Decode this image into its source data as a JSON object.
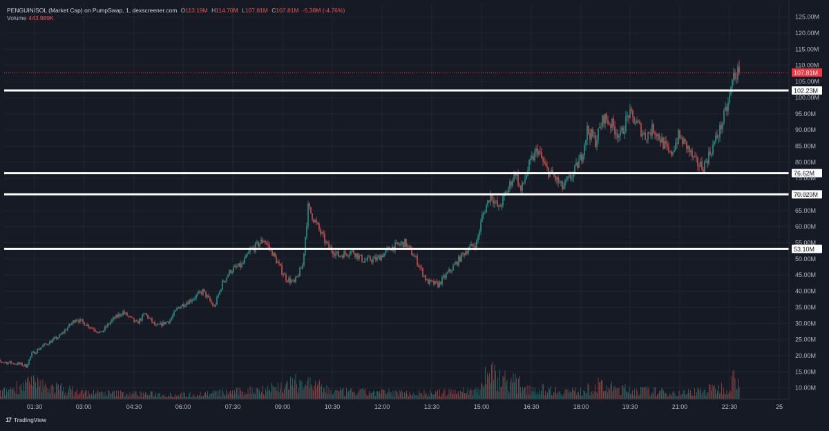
{
  "header": {
    "symbol": "PENGUIN/SOL (Market Cap) on PumpSwap, 1, dexscreener.com",
    "o_label": "O",
    "o": "113.19M",
    "h_label": "H",
    "h": "114.70M",
    "l_label": "L",
    "l": "107.81M",
    "c_label": "C",
    "c": "107.81M",
    "change": "-5.38M (-4.76%)",
    "volume_label": "Volume",
    "volume": "443.989K"
  },
  "footer": {
    "logo_mark": "17",
    "brand": "TradingView"
  },
  "chart_data": {
    "type": "candlestick",
    "title": "PENGUIN/SOL (Market Cap) on PumpSwap, 1, dexscreener.com",
    "x_tick_labels": [
      "01:30",
      "03:00",
      "04:30",
      "06:00",
      "07:30",
      "09:00",
      "10:30",
      "12:00",
      "13:30",
      "15:00",
      "16:30",
      "18:00",
      "19:30",
      "21:00",
      "22:30",
      "25"
    ],
    "y_tick_labels": [
      "125.00M",
      "120.00M",
      "115.00M",
      "110.00M",
      "105.00M",
      "100.00M",
      "95.00M",
      "90.00M",
      "85.00M",
      "80.00M",
      "75.00M",
      "70.00M",
      "65.00M",
      "60.00M",
      "55.00M",
      "50.00M",
      "45.00M",
      "40.00M",
      "35.00M",
      "30.00M",
      "25.00M",
      "20.00M",
      "15.00M",
      "10.00M"
    ],
    "y_ticks": [
      125,
      120,
      115,
      110,
      105,
      100,
      95,
      90,
      85,
      80,
      75,
      70,
      65,
      60,
      55,
      50,
      45,
      40,
      35,
      30,
      25,
      20,
      15,
      10
    ],
    "ylim": [
      6.5,
      129
    ],
    "unit": "M",
    "horizontal_levels": [
      {
        "value": 102.23,
        "label": "102.23M"
      },
      {
        "value": 76.62,
        "label": "76.62M"
      },
      {
        "value": 70.02,
        "label": "70.020M"
      },
      {
        "value": 53.1,
        "label": "53.10M"
      }
    ],
    "last_price": {
      "value": 107.81,
      "label": "107.81M",
      "color": "#f23645"
    },
    "colors": {
      "up": "#26a69a",
      "down": "#ef5350",
      "background": "#161a25",
      "grid": "#232633",
      "level_line": "#ffffff"
    },
    "price_path_x": [
      "00:05",
      "01:00",
      "01:15",
      "01:25",
      "01:45",
      "02:15",
      "02:45",
      "03:00",
      "03:30",
      "03:50",
      "04:10",
      "04:35",
      "04:50",
      "05:10",
      "05:35",
      "05:50",
      "06:10",
      "06:35",
      "06:55",
      "07:10",
      "07:25",
      "07:45",
      "08:00",
      "08:25",
      "08:40",
      "08:55",
      "09:05",
      "09:20",
      "09:35",
      "09:45",
      "10:05",
      "10:20",
      "10:40",
      "11:05",
      "11:25",
      "11:50",
      "12:15",
      "12:40",
      "13:00",
      "13:20",
      "13:40",
      "14:10",
      "14:30",
      "14:50",
      "15:00",
      "15:15",
      "15:30",
      "15:50",
      "16:00",
      "16:10",
      "16:25",
      "16:40",
      "16:55",
      "17:10",
      "17:25",
      "17:45",
      "18:00",
      "18:10",
      "18:25",
      "18:40",
      "18:55",
      "19:10",
      "19:25",
      "19:40",
      "19:55",
      "20:10",
      "20:25",
      "20:40",
      "20:55",
      "21:10",
      "21:25",
      "21:40",
      "21:55",
      "22:10",
      "22:25",
      "22:35",
      "22:45"
    ],
    "price_path_y": [
      18.6,
      17.5,
      16.8,
      20.5,
      23.0,
      26.0,
      31.5,
      30.0,
      27.0,
      31.0,
      33.5,
      30.0,
      33.0,
      29.0,
      31.0,
      35.0,
      37.0,
      40.0,
      35.0,
      42.5,
      46.5,
      48.0,
      52.5,
      56.0,
      52.0,
      47.0,
      44.0,
      42.5,
      48.0,
      66.0,
      59.0,
      54.0,
      51.0,
      52.5,
      49.5,
      50.0,
      53.5,
      55.0,
      50.0,
      43.0,
      42.0,
      48.0,
      52.5,
      55.0,
      63.0,
      70.0,
      65.5,
      73.0,
      77.0,
      71.0,
      79.0,
      84.0,
      78.0,
      75.5,
      72.0,
      76.5,
      82.0,
      90.0,
      86.5,
      94.0,
      91.5,
      88.0,
      95.0,
      92.0,
      88.0,
      90.5,
      86.5,
      82.0,
      88.0,
      85.0,
      80.0,
      78.5,
      84.0,
      90.0,
      98.0,
      107.0,
      107.81
    ],
    "volume_profile_x": [
      "00:05",
      "01:15",
      "03:00",
      "06:00",
      "07:40",
      "09:05",
      "09:35",
      "10:30",
      "13:30",
      "14:55",
      "15:05",
      "16:30",
      "17:55",
      "18:30",
      "19:00",
      "19:40",
      "21:00",
      "22:20",
      "22:35",
      "22:45"
    ],
    "volume_profile_y": [
      0.05,
      0.55,
      0.22,
      0.15,
      0.25,
      0.45,
      0.6,
      0.25,
      0.2,
      0.3,
      0.9,
      0.35,
      0.25,
      0.45,
      0.35,
      0.3,
      0.2,
      0.4,
      0.7,
      0.95
    ]
  }
}
